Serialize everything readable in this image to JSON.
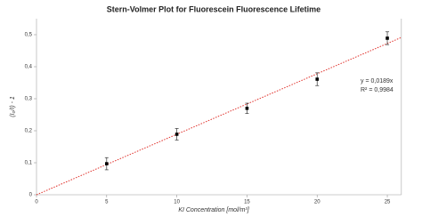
{
  "chart_data": {
    "type": "scatter",
    "title": "Stern-Volmer Plot for Fluorescein Fluorescence Lifetime",
    "x_label": "KI Concentration [mol/m³]",
    "y_label": "(I₀/I) - 1",
    "x": [
      5,
      10,
      15,
      20,
      25
    ],
    "values": [
      0.097,
      0.189,
      0.27,
      0.361,
      0.489
    ],
    "errors": [
      0.019,
      0.018,
      0.016,
      0.02,
      0.02
    ],
    "color": "#000000",
    "xlim": [
      0,
      26
    ],
    "xticks": [
      0,
      5,
      10,
      15,
      20,
      25
    ],
    "ylim": [
      0,
      0.55
    ],
    "yticks": [
      0,
      {
        "value": 0.1,
        "label": "0,1"
      },
      {
        "value": 0.2,
        "label": "0,2"
      },
      {
        "value": 0.3,
        "label": "0,3"
      },
      {
        "value": 0.4,
        "label": "0,4"
      },
      {
        "value": 0.5,
        "label": "0,5"
      }
    ],
    "trendline": {
      "slope": 0.0189,
      "color": "#e0302a",
      "equation": "y = 0,0189x",
      "r_squared": "R² = 0,9984"
    }
  }
}
